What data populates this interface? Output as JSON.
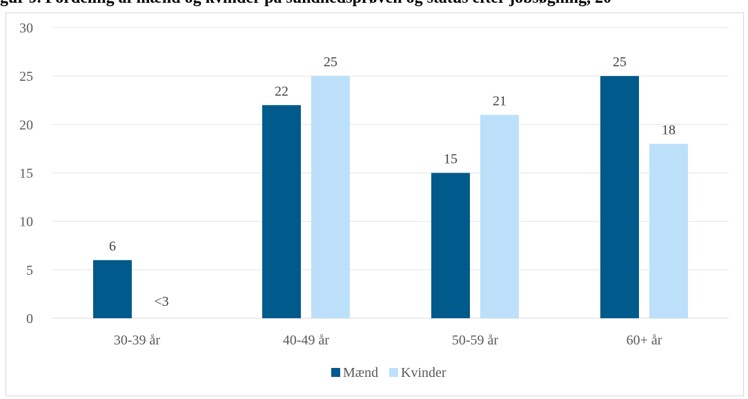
{
  "title": "gur 9. Fordeling af mænd og kvinder på sundhedsprøven og status efter jobsøgning, 20",
  "chart_data": {
    "type": "bar",
    "categories": [
      "30-39 år",
      "40-49 år",
      "50-59 år",
      "60+ år"
    ],
    "series": [
      {
        "name": "Mænd",
        "color": "#005a8c",
        "values": [
          6,
          22,
          15,
          25
        ],
        "labels": [
          "6",
          "22",
          "15",
          "25"
        ]
      },
      {
        "name": "Kvinder",
        "color": "#bde0fa",
        "values": [
          null,
          25,
          21,
          18
        ],
        "labels": [
          "<3",
          "25",
          "21",
          "18"
        ]
      }
    ],
    "ylim": [
      0,
      30
    ],
    "yticks": [
      0,
      5,
      10,
      15,
      20,
      25,
      30
    ],
    "grid": true,
    "legend_position": "bottom"
  }
}
